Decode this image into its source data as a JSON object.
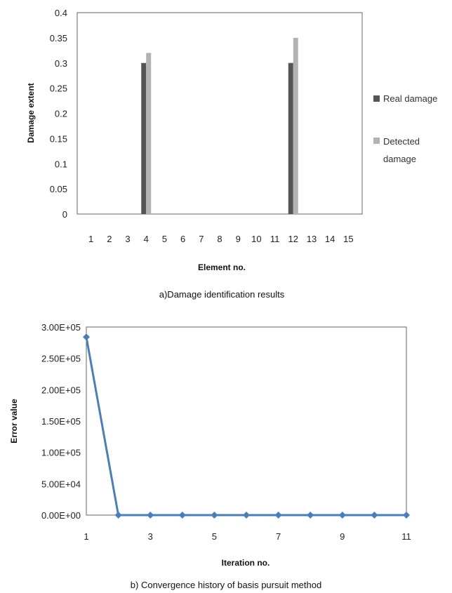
{
  "chart_data": [
    {
      "type": "bar",
      "caption": "a)Damage identification results",
      "xlabel": "Element no.",
      "ylabel": "Damage extent",
      "categories": [
        "1",
        "2",
        "3",
        "4",
        "5",
        "6",
        "7",
        "8",
        "9",
        "10",
        "11",
        "12",
        "13",
        "14",
        "15"
      ],
      "series": [
        {
          "name": "Real damage",
          "color": "#555555",
          "values": [
            0,
            0,
            0,
            0.3,
            0,
            0,
            0,
            0,
            0,
            0,
            0,
            0.3,
            0,
            0,
            0
          ]
        },
        {
          "name": "Detected damage",
          "color": "#b3b3b3",
          "values": [
            0,
            0,
            0,
            0.32,
            0,
            0,
            0,
            0,
            0,
            0,
            0,
            0.35,
            0,
            0,
            0
          ]
        }
      ],
      "ylim": [
        0,
        0.4
      ],
      "yticks": [
        "0",
        "0.05",
        "0.1",
        "0.15",
        "0.2",
        "0.25",
        "0.3",
        "0.35",
        "0.4"
      ],
      "legend": "right"
    },
    {
      "type": "line",
      "caption": "b) Convergence history of basis pursuit method",
      "xlabel": "Iteration no.",
      "ylabel": "Error value",
      "x": [
        1,
        2,
        3,
        4,
        5,
        6,
        7,
        8,
        9,
        10,
        11
      ],
      "xticks": [
        "1",
        "3",
        "5",
        "7",
        "9",
        "11"
      ],
      "series": [
        {
          "color": "#4a7ebb",
          "values": [
            284000,
            0,
            0,
            0,
            0,
            0,
            0,
            0,
            0,
            0,
            0
          ]
        }
      ],
      "ylim": [
        0,
        300000
      ],
      "yticks": [
        "0.00E+00",
        "5.00E+04",
        "1.00E+05",
        "1.50E+05",
        "2.00E+05",
        "2.50E+05",
        "3.00E+05"
      ]
    }
  ]
}
